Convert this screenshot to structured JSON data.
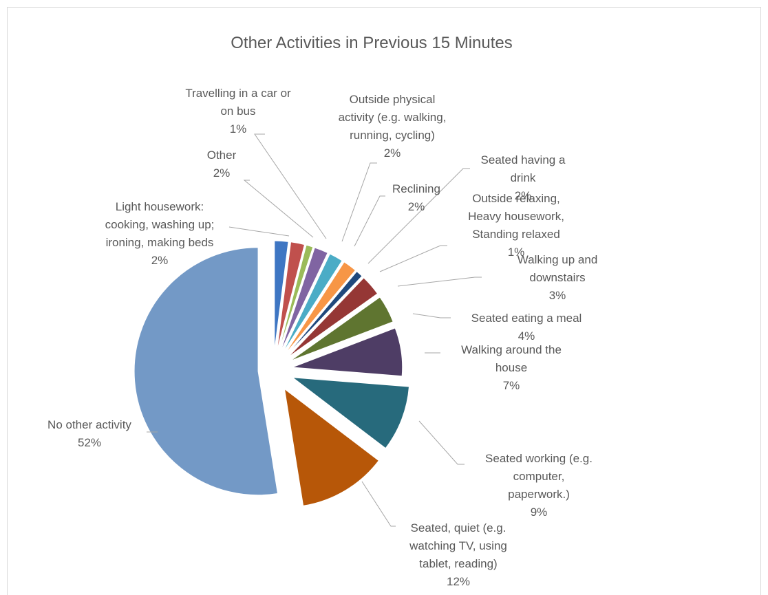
{
  "chart_data": {
    "type": "pie",
    "title": "Other Activities in Previous 15 Minutes",
    "slices": [
      {
        "name": "No other activity",
        "label_lines": [
          "No other activity"
        ],
        "value": 52,
        "value_label": "52%",
        "color": "#7399C6"
      },
      {
        "name": "Light housework: cooking, washing up; ironing, making beds",
        "label_lines": [
          "Light housework:",
          "cooking, washing up;",
          "ironing, making beds"
        ],
        "value": 2,
        "value_label": "2%",
        "color": "#3E76C3"
      },
      {
        "name": "Other",
        "label_lines": [
          "Other"
        ],
        "value": 2,
        "value_label": "2%",
        "color": "#C0504D"
      },
      {
        "name": "Travelling in a car or on bus",
        "label_lines": [
          "Travelling in a car or",
          "on bus"
        ],
        "value": 1,
        "value_label": "1%",
        "color": "#9BBB59"
      },
      {
        "name": "Outside physical activity (e.g. walking, running, cycling)",
        "label_lines": [
          "Outside physical",
          "activity (e.g. walking,",
          "running, cycling)"
        ],
        "value": 2,
        "value_label": "2%",
        "color": "#8064A2"
      },
      {
        "name": "Reclining",
        "label_lines": [
          "Reclining"
        ],
        "value": 2,
        "value_label": "2%",
        "color": "#4BACC6"
      },
      {
        "name": "Seated having a drink",
        "label_lines": [
          "Seated having a",
          "drink"
        ],
        "value": 2,
        "value_label": "2%",
        "color": "#F79646"
      },
      {
        "name": "Outside relaxing, Heavy housework, Standing relaxed",
        "label_lines": [
          "Outside relaxing,",
          "Heavy housework,",
          "Standing relaxed"
        ],
        "value": 1,
        "value_label": "1%",
        "color": "#1F497D"
      },
      {
        "name": "Walking up and downstairs",
        "label_lines": [
          "Walking up and",
          "downstairs"
        ],
        "value": 3,
        "value_label": "3%",
        "color": "#953735"
      },
      {
        "name": "Seated eating a meal",
        "label_lines": [
          "Seated eating a meal"
        ],
        "value": 4,
        "value_label": "4%",
        "color": "#5F7530"
      },
      {
        "name": "Walking around the house",
        "label_lines": [
          "Walking around the",
          "house"
        ],
        "value": 7,
        "value_label": "7%",
        "color": "#4E3D65"
      },
      {
        "name": "Seated working (e.g. computer, paperwork.)",
        "label_lines": [
          "Seated working (e.g.",
          "computer,",
          "paperwork.)"
        ],
        "value": 9,
        "value_label": "9%",
        "color": "#276A7C"
      },
      {
        "name": "Seated, quiet (e.g. watching TV, using tablet, reading)",
        "label_lines": [
          "Seated, quiet (e.g.",
          "watching TV, using",
          "tablet, reading)"
        ],
        "value": 12,
        "value_label": "12%",
        "color": "#B75708"
      }
    ]
  }
}
